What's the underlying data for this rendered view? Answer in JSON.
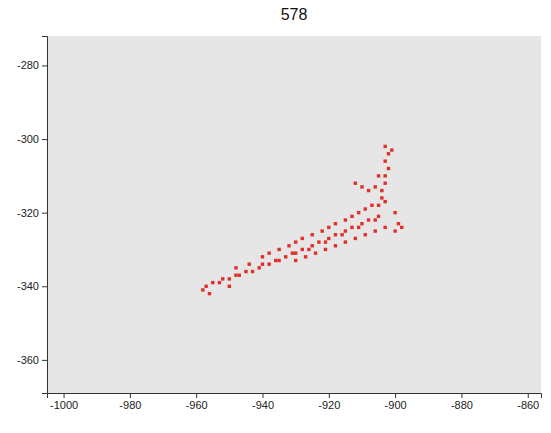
{
  "chart_data": {
    "type": "scatter",
    "title": "578",
    "color": "#e0302a",
    "marker": "square",
    "x": [
      -958,
      -957,
      -955,
      -953,
      -952,
      -950,
      -948,
      -947,
      -945,
      -943,
      -941,
      -940,
      -938,
      -936,
      -935,
      -933,
      -931,
      -930,
      -928,
      -926,
      -925,
      -923,
      -921,
      -920,
      -918,
      -916,
      -915,
      -913,
      -911,
      -910,
      -908,
      -906,
      -905,
      -940,
      -938,
      -935,
      -932,
      -930,
      -928,
      -925,
      -922,
      -920,
      -918,
      -915,
      -913,
      -911,
      -909,
      -907,
      -905,
      -903,
      -930,
      -927,
      -924,
      -921,
      -918,
      -915,
      -912,
      -909,
      -906,
      -903,
      -904,
      -904,
      -903,
      -903,
      -902,
      -903,
      -902,
      -903,
      -901,
      -905,
      -906,
      -908,
      -910,
      -912,
      -900,
      -899,
      -898,
      -900,
      -948,
      -944,
      -950,
      -956
    ],
    "values": [
      -341,
      -340,
      -339,
      -339,
      -338,
      -338,
      -337,
      -337,
      -336,
      -336,
      -335,
      -334,
      -334,
      -333,
      -333,
      -332,
      -331,
      -331,
      -330,
      -330,
      -329,
      -328,
      -328,
      -327,
      -326,
      -326,
      -325,
      -324,
      -324,
      -323,
      -322,
      -322,
      -321,
      -332,
      -331,
      -330,
      -329,
      -328,
      -327,
      -326,
      -325,
      -324,
      -323,
      -322,
      -321,
      -320,
      -319,
      -318,
      -318,
      -317,
      -333,
      -332,
      -331,
      -330,
      -329,
      -328,
      -327,
      -326,
      -325,
      -324,
      -316,
      -314,
      -312,
      -310,
      -308,
      -306,
      -304,
      -302,
      -303,
      -310,
      -313,
      -314,
      -313,
      -312,
      -320,
      -323,
      -324,
      -325,
      -335,
      -334,
      -340,
      -342
    ],
    "xlim": [
      -1005,
      -856
    ],
    "ylim": [
      -369,
      -272
    ],
    "xticks": [
      -1000,
      -980,
      -960,
      -940,
      -920,
      -900,
      -880,
      -860
    ],
    "yticks": [
      -280,
      -300,
      -320,
      -340,
      -360
    ]
  }
}
